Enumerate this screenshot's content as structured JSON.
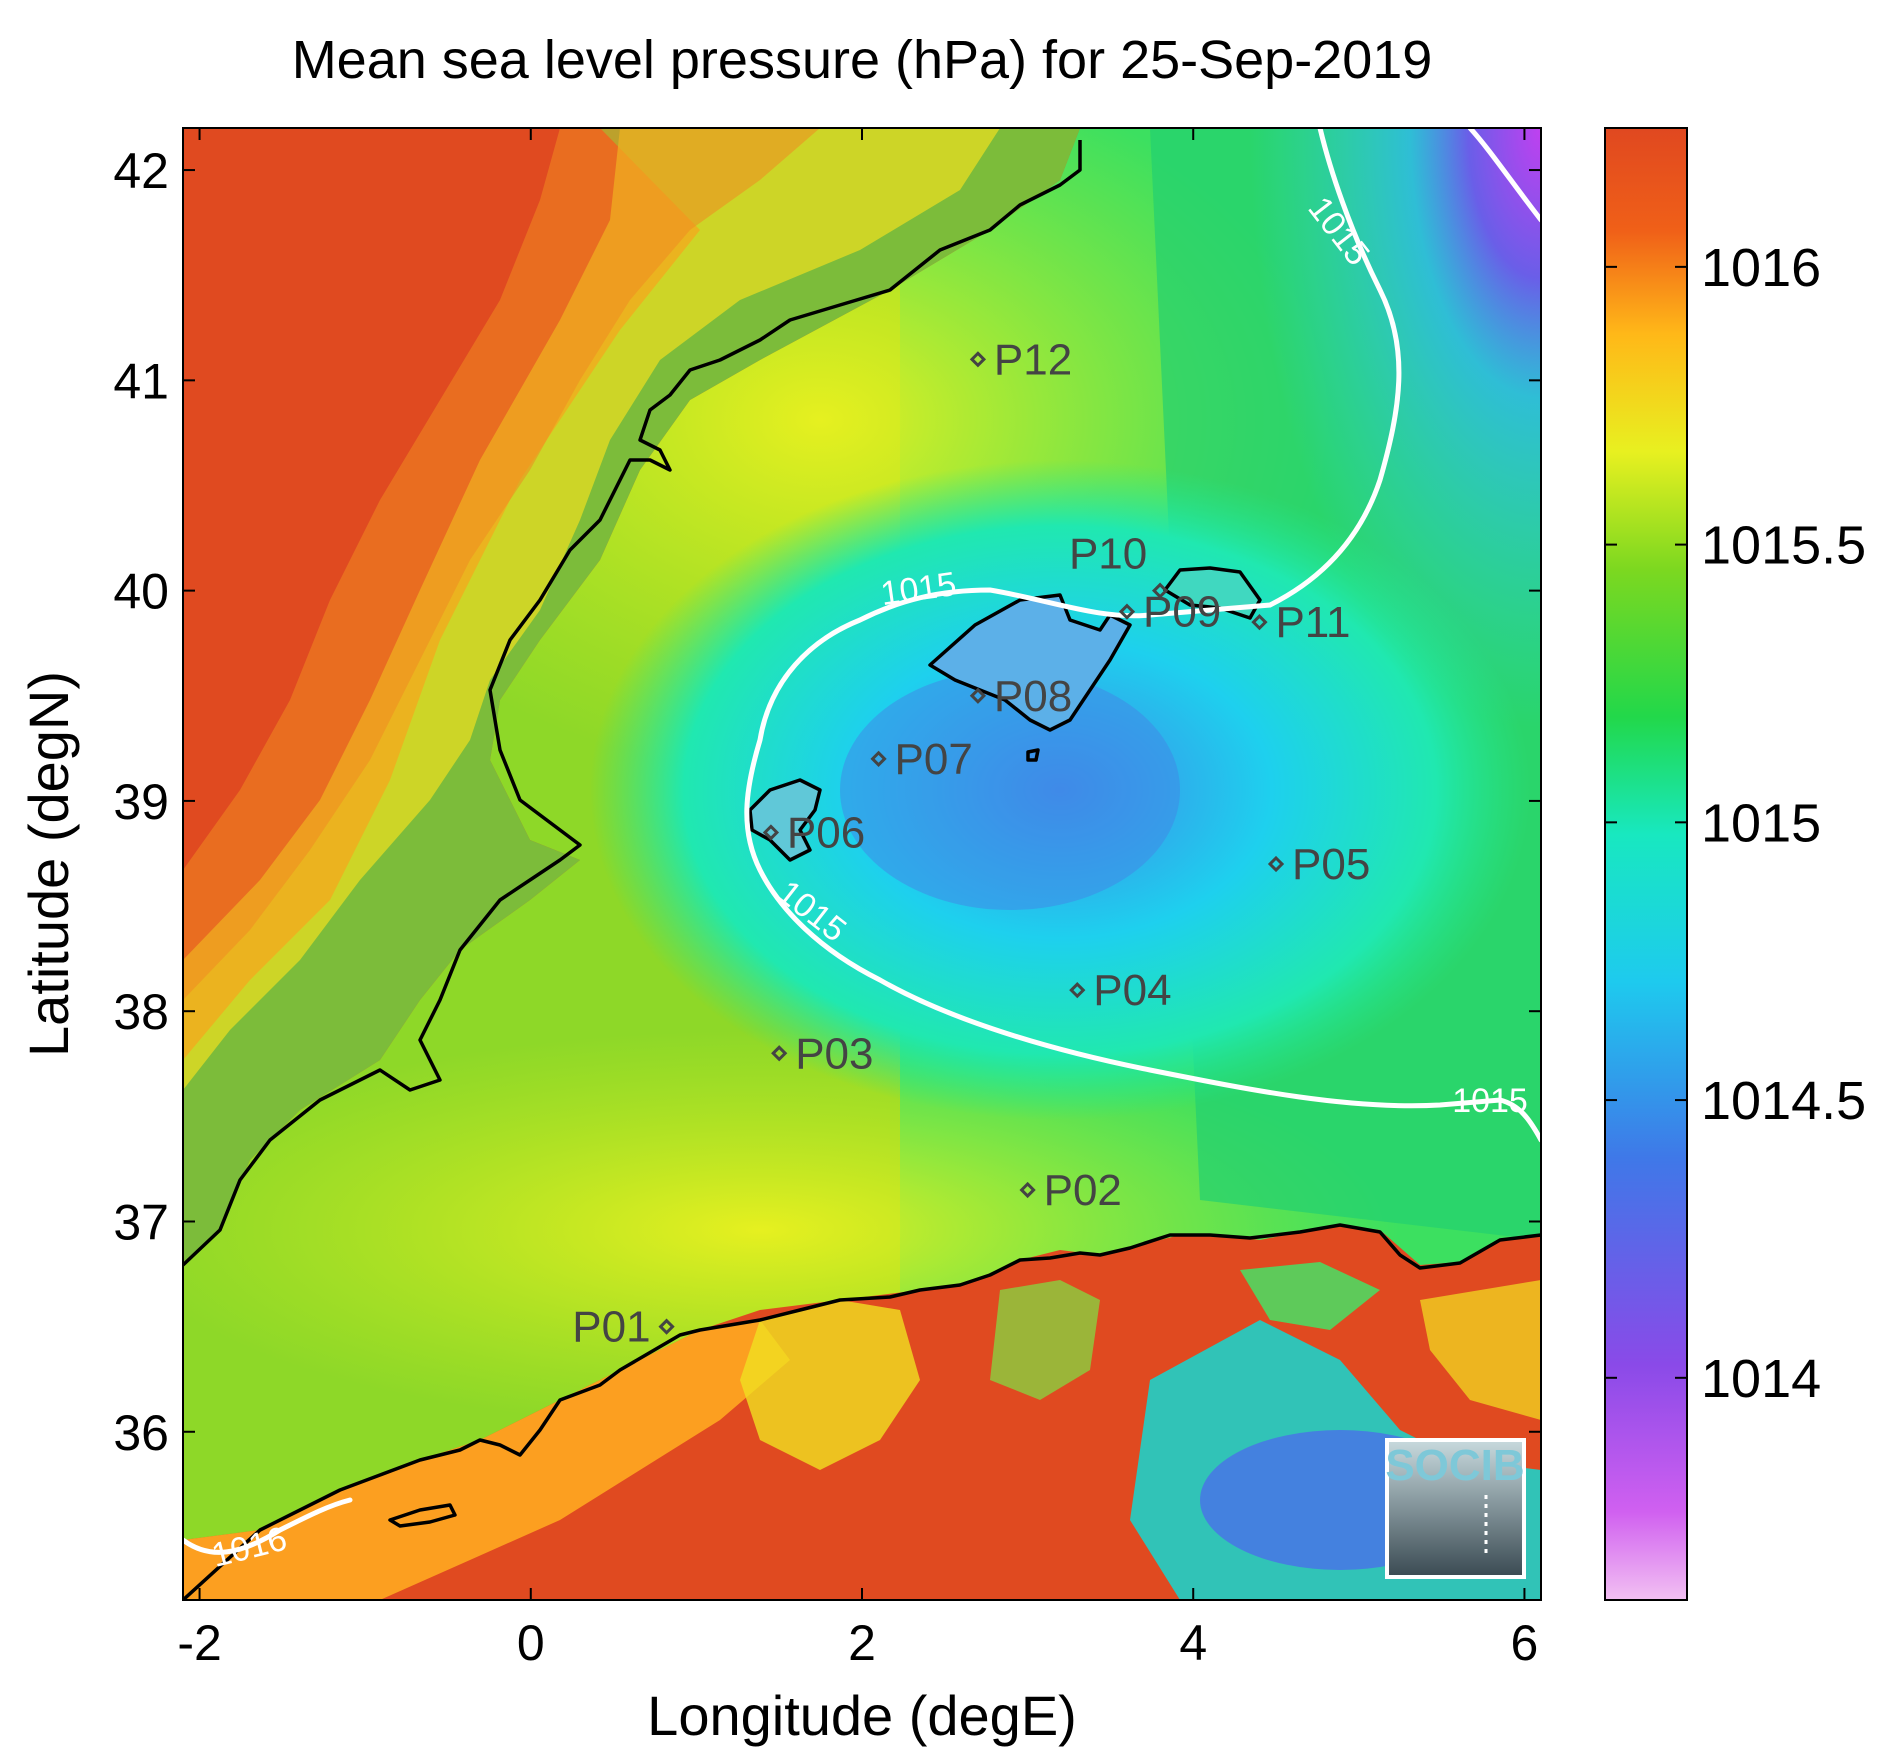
{
  "title": "Mean sea level pressure (hPa) for 25-Sep-2019",
  "xlabel": "Longitude (degE)",
  "ylabel": "Latitude (degN)",
  "map": {
    "lon_range": [
      -2.1,
      6.1
    ],
    "lat_range": [
      35.2,
      42.2
    ],
    "x_ticks": [
      -2,
      0,
      2,
      4,
      6
    ],
    "x_tick_labels": [
      "-2",
      "0",
      "2",
      "4",
      "6"
    ],
    "y_ticks": [
      36,
      37,
      38,
      39,
      40,
      41,
      42
    ],
    "y_tick_labels": [
      "36",
      "37",
      "38",
      "39",
      "40",
      "41",
      "42"
    ]
  },
  "colorbar": {
    "range": [
      1013.6,
      1016.25
    ],
    "ticks": [
      1014,
      1014.5,
      1015,
      1015.5,
      1016
    ],
    "tick_labels": [
      "1014",
      "1014.5",
      "1015",
      "1015.5",
      "1016"
    ],
    "colors": [
      "#f0b8f0",
      "#c850f0",
      "#8a4ae8",
      "#3f7ae8",
      "#1ecaee",
      "#18e8c8",
      "#22d84a",
      "#7cd820",
      "#e8f020",
      "#ffb818",
      "#f06018",
      "#e04820"
    ]
  },
  "contour_labels": [
    "1015",
    "1015",
    "1015",
    "1015",
    "1016"
  ],
  "stations": [
    {
      "id": "P01",
      "lon": 0.82,
      "lat": 36.5
    },
    {
      "id": "P02",
      "lon": 3.0,
      "lat": 37.15
    },
    {
      "id": "P03",
      "lon": 1.5,
      "lat": 37.8
    },
    {
      "id": "P04",
      "lon": 3.3,
      "lat": 38.1
    },
    {
      "id": "P05",
      "lon": 4.5,
      "lat": 38.7
    },
    {
      "id": "P06",
      "lon": 1.45,
      "lat": 38.85
    },
    {
      "id": "P07",
      "lon": 2.1,
      "lat": 39.2
    },
    {
      "id": "P08",
      "lon": 2.7,
      "lat": 39.5
    },
    {
      "id": "P09",
      "lon": 3.6,
      "lat": 39.9
    },
    {
      "id": "P10",
      "lon": 3.8,
      "lat": 40.0
    },
    {
      "id": "P11",
      "lon": 4.4,
      "lat": 39.85
    },
    {
      "id": "P12",
      "lon": 2.7,
      "lat": 41.1
    }
  ],
  "logo": {
    "text": "SOCIB"
  }
}
